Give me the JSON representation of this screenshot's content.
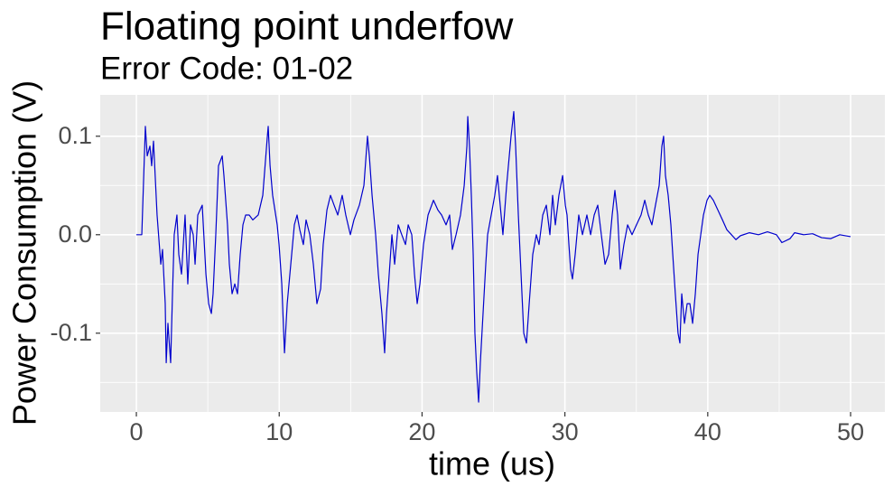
{
  "chart_data": {
    "type": "line",
    "title": "Floating point underfow",
    "subtitle": "Error Code: 01-02",
    "xlabel": "time (us)",
    "ylabel": "Power Consumption (V)",
    "xlim": [
      -2.53,
      52.4
    ],
    "ylim": [
      -0.18,
      0.142
    ],
    "xticks": [
      0,
      10,
      20,
      30,
      40,
      50
    ],
    "yticks": [
      -0.1,
      {
        "value": 0,
        "label": "0.0"
      },
      0.1
    ],
    "xminor": [
      5,
      15,
      25,
      35,
      45
    ],
    "yminor": [
      -0.15,
      -0.05,
      0.05
    ],
    "grid": true,
    "series": [
      {
        "color": "#0000CD",
        "x": [
          0,
          0.38,
          0.63,
          0.76,
          0.95,
          1.07,
          1.2,
          1.45,
          1.71,
          1.83,
          2.02,
          2.09,
          2.21,
          2.4,
          2.53,
          2.65,
          2.84,
          2.97,
          3.16,
          3.41,
          3.6,
          3.79,
          3.98,
          4.11,
          4.3,
          4.61,
          4.87,
          5.06,
          5.25,
          5.37,
          5.56,
          5.75,
          6.01,
          6.13,
          6.38,
          6.51,
          6.7,
          6.89,
          7.08,
          7.27,
          7.46,
          7.65,
          7.9,
          8.15,
          8.53,
          8.85,
          9.17,
          9.23,
          9.36,
          9.54,
          9.86,
          9.99,
          10.18,
          10.37,
          10.56,
          10.81,
          11.06,
          11.25,
          11.44,
          11.69,
          11.88,
          12.14,
          12.39,
          12.64,
          12.9,
          13.08,
          13.34,
          13.59,
          13.84,
          14.1,
          14.41,
          14.66,
          14.98,
          15.23,
          15.61,
          15.93,
          16.18,
          16.31,
          16.5,
          16.75,
          16.94,
          17.19,
          17.38,
          17.51,
          17.7,
          17.89,
          18.08,
          18.33,
          18.58,
          18.84,
          19.03,
          19.28,
          19.47,
          19.66,
          19.85,
          20.1,
          20.42,
          20.8,
          21.11,
          21.37,
          21.68,
          21.93,
          22.12,
          22.38,
          22.69,
          22.95,
          23.14,
          23.2,
          23.32,
          23.45,
          23.58,
          23.7,
          23.83,
          23.96,
          24.08,
          24.27,
          24.46,
          24.59,
          24.84,
          25.09,
          25.28,
          25.47,
          25.66,
          25.92,
          26.23,
          26.42,
          26.55,
          26.74,
          26.93,
          27.12,
          27.31,
          27.5,
          27.75,
          28.0,
          28.19,
          28.45,
          28.7,
          28.95,
          29.14,
          29.33,
          29.58,
          29.84,
          30.03,
          30.15,
          30.28,
          30.4,
          30.53,
          30.72,
          30.97,
          31.23,
          31.54,
          31.8,
          32.05,
          32.3,
          32.55,
          32.81,
          33.06,
          33.31,
          33.5,
          33.69,
          33.88,
          34.13,
          34.39,
          34.7,
          35.01,
          35.33,
          35.59,
          35.84,
          36.09,
          36.34,
          36.6,
          36.79,
          36.91,
          37.04,
          37.23,
          37.42,
          37.55,
          37.73,
          37.92,
          38.05,
          38.18,
          38.37,
          38.56,
          38.75,
          38.94,
          39.13,
          39.32,
          39.51,
          39.7,
          39.95,
          40.14,
          40.39,
          40.71,
          41.03,
          41.34,
          41.66,
          41.97,
          42.29,
          42.92,
          43.55,
          44.18,
          44.81,
          45.19,
          45.76,
          46.08,
          46.71,
          47.34,
          47.97,
          48.6,
          49.24,
          50.0
        ],
        "values": [
          0,
          0,
          0.11,
          0.08,
          0.09,
          0.07,
          0.095,
          0.02,
          -0.03,
          -0.015,
          -0.07,
          -0.13,
          -0.09,
          -0.13,
          -0.06,
          0.0,
          0.02,
          -0.02,
          -0.04,
          0.02,
          -0.05,
          0.01,
          0.0,
          -0.03,
          0.02,
          0.03,
          -0.04,
          -0.07,
          -0.08,
          -0.06,
          0.0,
          0.07,
          0.08,
          0.06,
          0.01,
          -0.03,
          -0.06,
          -0.05,
          -0.06,
          -0.02,
          0.01,
          0.02,
          0.02,
          0.015,
          0.02,
          0.04,
          0.1,
          0.11,
          0.07,
          0.04,
          0.01,
          -0.01,
          -0.05,
          -0.12,
          -0.07,
          -0.03,
          0.01,
          0.02,
          0.005,
          -0.01,
          0.015,
          0.0,
          -0.03,
          -0.07,
          -0.055,
          -0.01,
          0.025,
          0.04,
          0.03,
          0.02,
          0.04,
          0.02,
          0.0,
          0.015,
          0.03,
          0.05,
          0.1,
          0.08,
          0.04,
          0.0,
          -0.04,
          -0.08,
          -0.12,
          -0.08,
          -0.04,
          0.0,
          -0.03,
          0.01,
          0.0,
          -0.01,
          0.01,
          0.0,
          -0.04,
          -0.07,
          -0.05,
          -0.01,
          0.02,
          0.035,
          0.025,
          0.02,
          0.01,
          0.02,
          -0.015,
          0.0,
          0.02,
          0.05,
          0.09,
          0.12,
          0.09,
          0.04,
          -0.02,
          -0.1,
          -0.14,
          -0.17,
          -0.13,
          -0.08,
          -0.03,
          0.0,
          0.02,
          0.04,
          0.06,
          0.03,
          0.0,
          0.05,
          0.1,
          0.125,
          0.09,
          0.02,
          -0.04,
          -0.1,
          -0.11,
          -0.07,
          -0.02,
          0.0,
          -0.01,
          0.02,
          0.03,
          0.0,
          0.04,
          0.01,
          0.04,
          0.06,
          0.03,
          0.02,
          -0.01,
          -0.035,
          -0.045,
          -0.02,
          0.02,
          0.0,
          0.02,
          0.0,
          0.02,
          0.03,
          0.0,
          -0.03,
          -0.02,
          0.02,
          0.045,
          0.02,
          -0.035,
          -0.01,
          0.01,
          0.0,
          0.01,
          0.02,
          0.035,
          0.02,
          0.01,
          0.03,
          0.05,
          0.09,
          0.1,
          0.06,
          0.04,
          0.01,
          -0.02,
          -0.06,
          -0.1,
          -0.11,
          -0.06,
          -0.09,
          -0.07,
          -0.07,
          -0.09,
          -0.06,
          -0.02,
          0.0,
          0.02,
          0.035,
          0.04,
          0.035,
          0.025,
          0.015,
          0.005,
          0.0,
          -0.005,
          -0.001,
          0.002,
          0.0,
          0.003,
          0.0,
          -0.008,
          -0.004,
          0.002,
          0.0,
          0.001,
          -0.003,
          -0.004,
          0.0,
          -0.002
        ]
      }
    ]
  }
}
